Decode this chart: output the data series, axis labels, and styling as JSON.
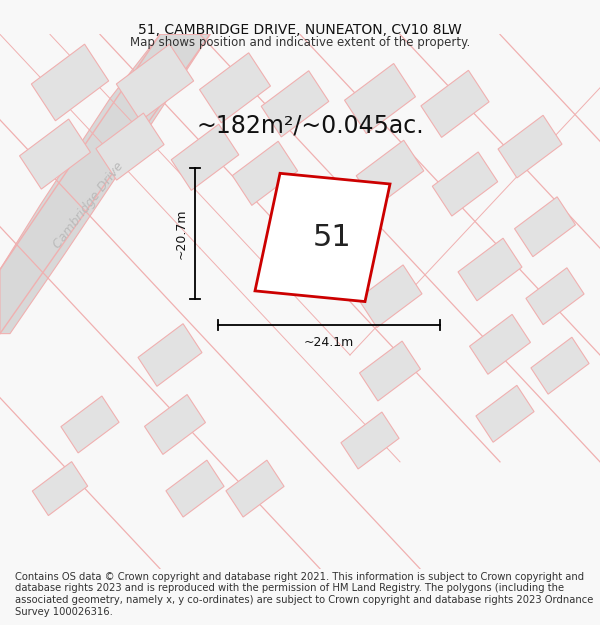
{
  "title": "51, CAMBRIDGE DRIVE, NUNEATON, CV10 8LW",
  "subtitle": "Map shows position and indicative extent of the property.",
  "area_text": "~182m²/~0.045ac.",
  "number_label": "51",
  "dim_width": "~24.1m",
  "dim_height": "~20.7m",
  "road_label": "Cambridge Drive",
  "footer": "Contains OS data © Crown copyright and database right 2021. This information is subject to Crown copyright and database rights 2023 and is reproduced with the permission of HM Land Registry. The polygons (including the associated geometry, namely x, y co-ordinates) are subject to Crown copyright and database rights 2023 Ordnance Survey 100026316.",
  "bg_color": "#f8f8f8",
  "map_bg": "#ffffff",
  "block_color": "#e2e2e2",
  "road_line_color": "#f0b0b0",
  "plot_outline_color": "#cc0000",
  "title_fontsize": 10,
  "subtitle_fontsize": 8.5,
  "footer_fontsize": 7.2,
  "area_fontsize": 17,
  "number_fontsize": 22,
  "dim_fontsize": 9
}
